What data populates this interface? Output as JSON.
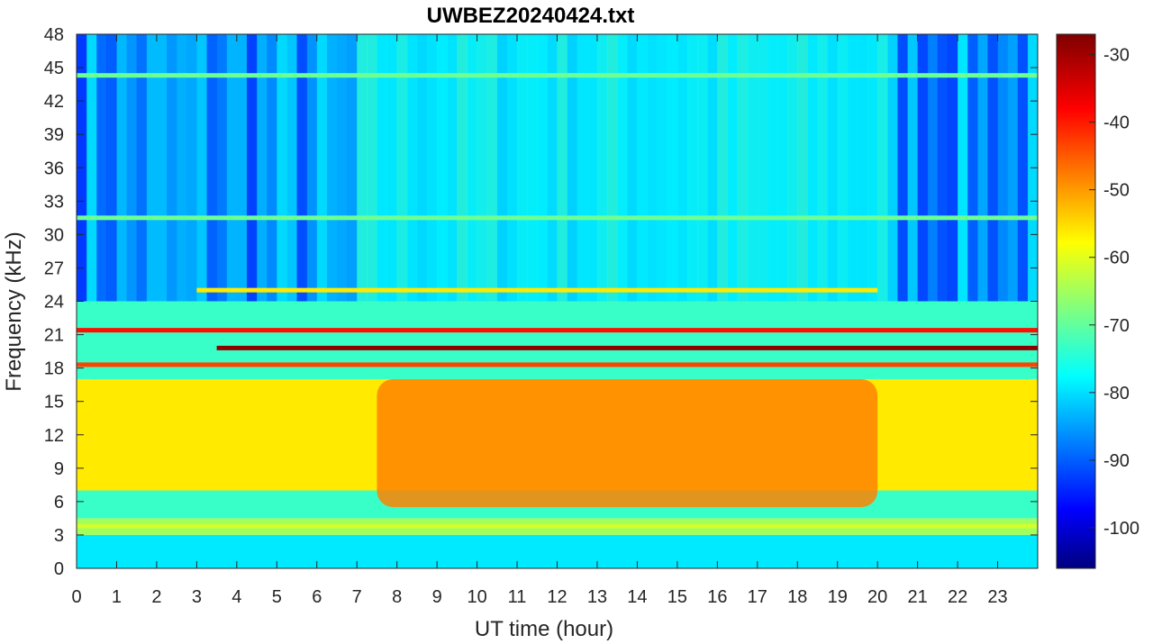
{
  "chart_data": {
    "type": "heatmap",
    "title": "UWBEZ20240424.txt",
    "xlabel": "UT time (hour)",
    "ylabel": "Frequency (kHz)",
    "xlim": [
      0,
      24
    ],
    "ylim": [
      0,
      48
    ],
    "xticks": [
      "0",
      "1",
      "2",
      "3",
      "4",
      "5",
      "6",
      "7",
      "8",
      "9",
      "10",
      "11",
      "12",
      "13",
      "14",
      "15",
      "16",
      "17",
      "18",
      "19",
      "20",
      "21",
      "22",
      "23"
    ],
    "yticks": [
      "0",
      "3",
      "6",
      "9",
      "12",
      "15",
      "18",
      "21",
      "24",
      "27",
      "30",
      "33",
      "36",
      "39",
      "42",
      "45",
      "48"
    ],
    "colorbar": {
      "colormap": "jet",
      "range": [
        -106,
        -27
      ],
      "ticks": [
        "-30",
        "-40",
        "-50",
        "-60",
        "-70",
        "-80",
        "-90",
        "-100"
      ]
    },
    "bands": [
      {
        "freq_khz": [
          0,
          3
        ],
        "level_db": -78
      },
      {
        "freq_khz": [
          3,
          4.5
        ],
        "level_db": -64
      },
      {
        "freq_khz": [
          4.5,
          7
        ],
        "level_db": -72
      },
      {
        "freq_khz": [
          7,
          17
        ],
        "level_db": -55
      },
      {
        "freq_khz": [
          17,
          24
        ],
        "level_db": -72
      },
      {
        "freq_khz": [
          24,
          48
        ],
        "level_db": -82
      }
    ],
    "daytime_enhancement": {
      "hours": [
        7.5,
        20
      ],
      "freq_khz": [
        5.5,
        17
      ],
      "level_db": -47
    },
    "transmitter_lines": [
      {
        "freq_khz": 21.4,
        "hours": [
          0,
          24
        ],
        "level_db": -38
      },
      {
        "freq_khz": 19.8,
        "hours": [
          3.5,
          24
        ],
        "level_db": -28
      },
      {
        "freq_khz": 18.3,
        "hours": [
          0,
          24
        ],
        "level_db": -42
      },
      {
        "freq_khz": 44.3,
        "hours": [
          0,
          24
        ],
        "level_db": -68
      },
      {
        "freq_khz": 31.5,
        "hours": [
          0,
          24
        ],
        "level_db": -68
      },
      {
        "freq_khz": 25,
        "hours": [
          3,
          20
        ],
        "level_db": -55
      },
      {
        "freq_khz": 3.8,
        "hours": [
          0,
          24
        ],
        "level_db": -60
      }
    ]
  },
  "colors": {
    "jet_stops": [
      "#00007f",
      "#0000ff",
      "#007fff",
      "#00ffff",
      "#7fff7f",
      "#ffff00",
      "#ff7f00",
      "#ff0000",
      "#7f0000"
    ]
  }
}
